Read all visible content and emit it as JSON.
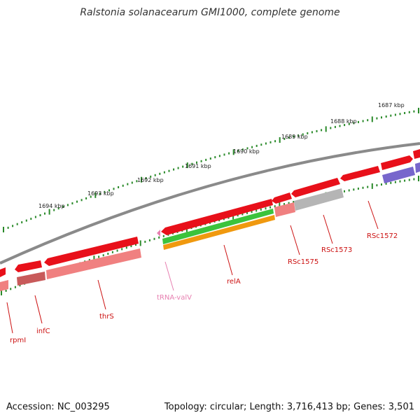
{
  "title": "Ralstonia solanacearum GMI1000, complete genome",
  "footer": {
    "accession": "Accession: NC_003295",
    "info": "Topology: circular; Length: 3,716,413 bp; Genes: 3,501"
  },
  "colors": {
    "backbone": "#8a8a8a",
    "cds": "#e8101a",
    "cds_light": "#f08080",
    "rna": "#e77fb0",
    "green": "#3cc33c",
    "orange": "#f0990f",
    "gray": "#b5b5b5",
    "purple": "#7766cc",
    "tick": "#2a8a2a",
    "label": "#cc1111"
  },
  "kbp_labels": [
    "1687 kbp",
    "1688 kbp",
    "1689 kbp",
    "1690 kbp",
    "1691 kbp",
    "1692 kbp",
    "1693 kbp",
    "1694 kbp"
  ],
  "gene_labels": [
    "rpmI",
    "infC",
    "thrS",
    "tRNA-valV",
    "relA",
    "RSc1575",
    "RSc1573",
    "RSc1572"
  ]
}
